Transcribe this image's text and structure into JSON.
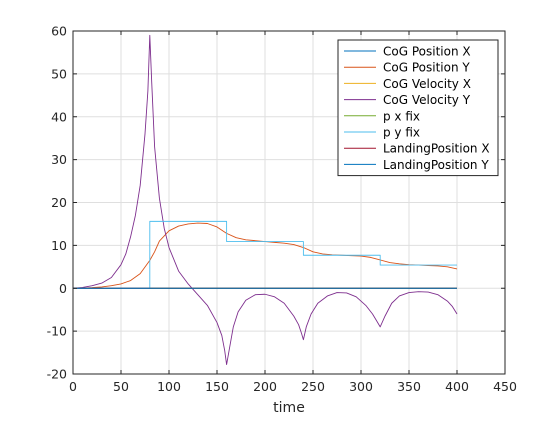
{
  "chart_data": {
    "type": "line",
    "title": "",
    "xlabel": "time",
    "ylabel": "",
    "xlim": [
      0,
      450
    ],
    "ylim": [
      -20,
      60
    ],
    "xticks": [
      0,
      50,
      100,
      150,
      200,
      250,
      300,
      350,
      400,
      450
    ],
    "yticks": [
      -20,
      -10,
      0,
      10,
      20,
      30,
      40,
      50,
      60
    ],
    "grid": true,
    "legend_position": "top-right",
    "series": [
      {
        "name": "CoG Position X",
        "color": "#0072BD",
        "x": [
          0,
          400
        ],
        "y": [
          0,
          0
        ]
      },
      {
        "name": "CoG Position Y",
        "color": "#D95319",
        "x": [
          0,
          10,
          20,
          30,
          40,
          50,
          60,
          70,
          80,
          85,
          90,
          100,
          110,
          120,
          130,
          140,
          150,
          160,
          170,
          180,
          190,
          200,
          210,
          220,
          230,
          240,
          250,
          260,
          270,
          280,
          290,
          300,
          310,
          320,
          330,
          340,
          350,
          360,
          370,
          380,
          390,
          400
        ],
        "y": [
          0,
          0.05,
          0.15,
          0.3,
          0.6,
          1.0,
          1.8,
          3.4,
          6.5,
          8.5,
          11.0,
          13.4,
          14.5,
          15.0,
          15.2,
          15.1,
          14.3,
          12.8,
          11.8,
          11.3,
          11.1,
          10.9,
          10.7,
          10.5,
          10.2,
          9.5,
          8.5,
          8.0,
          7.8,
          7.7,
          7.6,
          7.5,
          7.2,
          6.6,
          6.0,
          5.7,
          5.5,
          5.4,
          5.3,
          5.2,
          5.0,
          4.5
        ]
      },
      {
        "name": "CoG Velocity X",
        "color": "#EDB120",
        "x": [
          0,
          400
        ],
        "y": [
          0,
          0
        ]
      },
      {
        "name": "CoG Velocity Y",
        "color": "#7E2F8E",
        "x": [
          0,
          10,
          20,
          30,
          40,
          50,
          55,
          60,
          65,
          70,
          75,
          78,
          80,
          82,
          85,
          90,
          95,
          100,
          110,
          120,
          130,
          140,
          150,
          155,
          158,
          160,
          163,
          167,
          172,
          180,
          190,
          200,
          210,
          220,
          230,
          235,
          238,
          240,
          243,
          248,
          255,
          265,
          275,
          285,
          295,
          305,
          312,
          316,
          320,
          325,
          332,
          340,
          350,
          360,
          370,
          380,
          390,
          395,
          400
        ],
        "y": [
          0,
          0.2,
          0.6,
          1.2,
          2.5,
          5.5,
          8.0,
          12.0,
          17.0,
          24.0,
          36.0,
          46.0,
          59.0,
          48.0,
          33.0,
          21.0,
          14.0,
          9.5,
          4.0,
          1.0,
          -1.5,
          -4.0,
          -8.0,
          -11.0,
          -14.5,
          -17.8,
          -14.0,
          -9.0,
          -5.5,
          -2.8,
          -1.5,
          -1.4,
          -2.0,
          -3.5,
          -6.5,
          -8.5,
          -10.5,
          -12.0,
          -9.0,
          -6.0,
          -3.5,
          -1.8,
          -1.0,
          -1.1,
          -2.0,
          -4.0,
          -6.0,
          -7.5,
          -9.0,
          -6.5,
          -3.5,
          -1.8,
          -1.0,
          -0.8,
          -0.9,
          -1.5,
          -3.0,
          -4.2,
          -6.0
        ]
      },
      {
        "name": "p x fix",
        "color": "#77AC30",
        "x": [
          0,
          400
        ],
        "y": [
          0,
          0
        ]
      },
      {
        "name": "p y fix",
        "color": "#4DBEEE",
        "x": [
          0,
          80,
          80,
          160,
          160,
          240,
          240,
          320,
          320,
          400
        ],
        "y": [
          0,
          0,
          15.6,
          15.6,
          10.9,
          10.9,
          7.7,
          7.7,
          5.4,
          5.4
        ]
      },
      {
        "name": "LandingPosition X",
        "color": "#A2142F",
        "x": [
          0,
          400
        ],
        "y": [
          0,
          0
        ]
      },
      {
        "name": "LandingPosition Y",
        "color": "#0072BD",
        "x": [
          0,
          400
        ],
        "y": [
          0,
          0
        ]
      }
    ]
  }
}
